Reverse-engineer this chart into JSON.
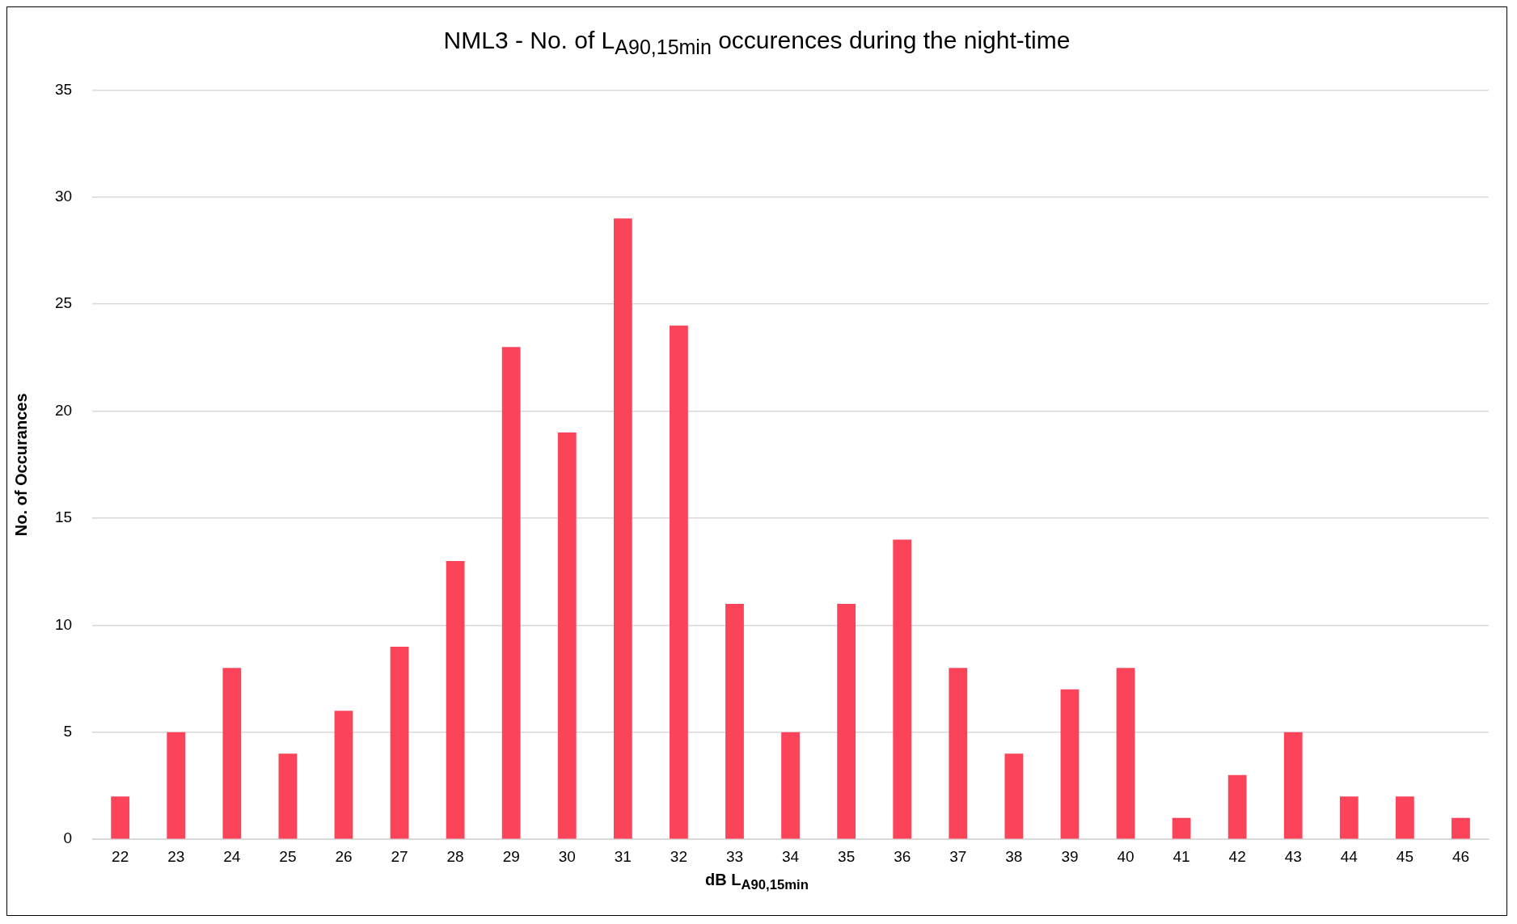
{
  "chart_data": {
    "type": "bar",
    "title": "NML3 - No. of L$_{A90,15min}$ occurences during the night-time",
    "xlabel": "dB L$_{A90,15min}$",
    "ylabel": "No. of Occurances",
    "categories": [
      "22",
      "23",
      "24",
      "25",
      "26",
      "27",
      "28",
      "29",
      "30",
      "31",
      "32",
      "33",
      "34",
      "35",
      "36",
      "37",
      "38",
      "39",
      "40",
      "41",
      "42",
      "43",
      "44",
      "45",
      "46"
    ],
    "values": [
      2,
      5,
      8,
      4,
      6,
      9,
      13,
      23,
      19,
      29,
      24,
      11,
      5,
      11,
      14,
      8,
      4,
      7,
      8,
      1,
      3,
      5,
      2,
      2,
      1
    ],
    "color": "#fb4459",
    "ylim": [
      0,
      35
    ],
    "yticks": [
      0,
      5,
      10,
      15,
      20,
      25,
      30,
      35
    ],
    "grid": "y",
    "legend": false
  }
}
